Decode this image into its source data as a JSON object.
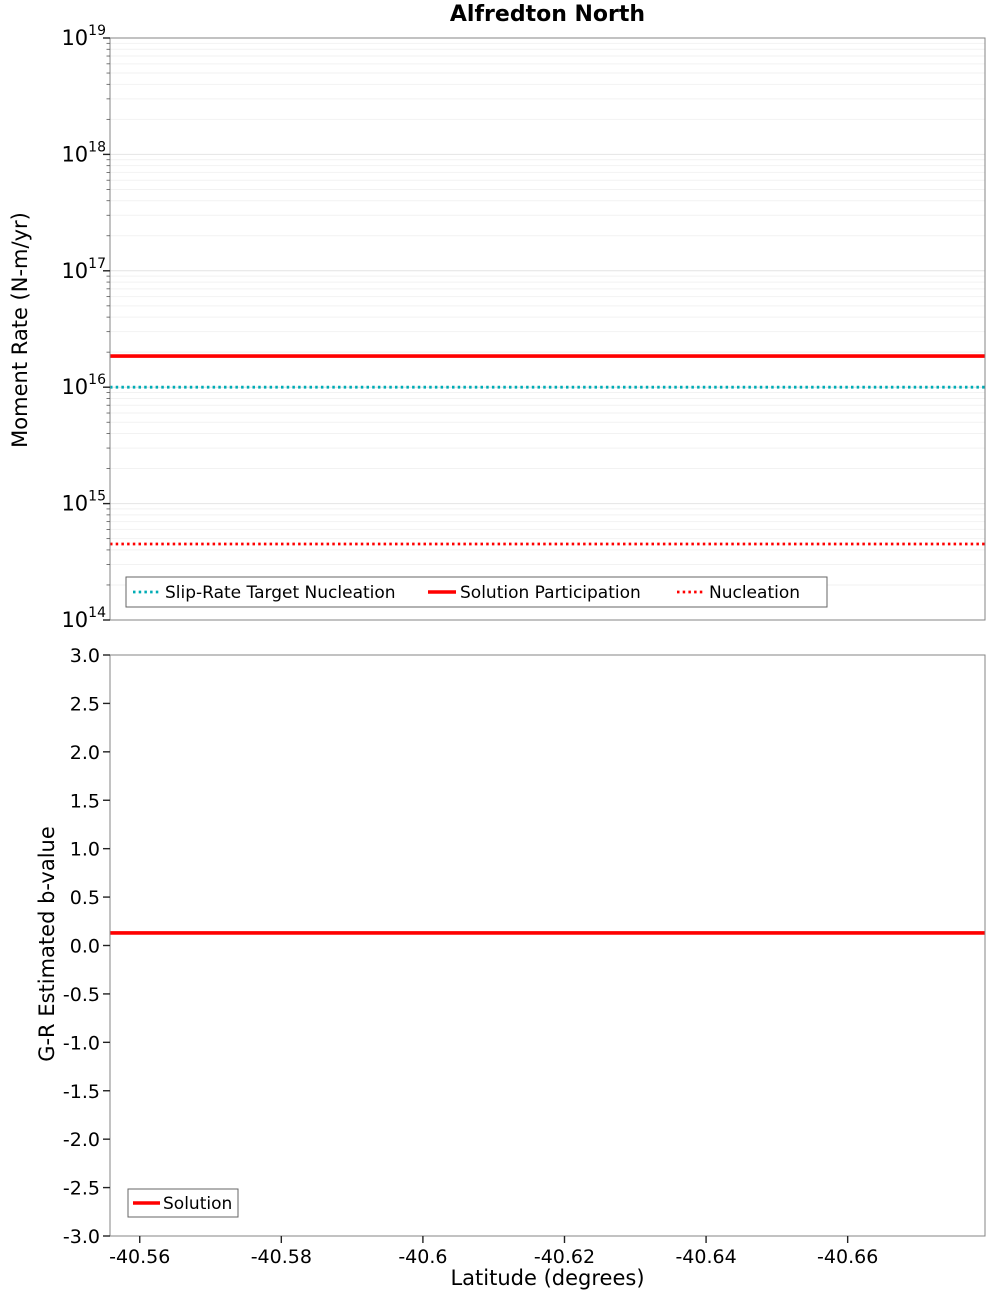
{
  "chart_data": [
    {
      "type": "line",
      "title": "Alfredton North",
      "ylabel": "Moment Rate (N-m/yr)",
      "yscale": "log",
      "ylim": [
        100000000000000.0,
        1e+19
      ],
      "ytick_exponents": [
        19,
        18,
        17,
        16,
        15,
        14
      ],
      "xlim": [
        -40.5558,
        -40.6794
      ],
      "grid": "horizontal-log-minor",
      "legend_position": "bottom-center-inside",
      "series": [
        {
          "name": "Slip-Rate Target Nucleation",
          "color": "#00ACB5",
          "line_style": "dotted",
          "line_width": 2.8,
          "y": 1e+16
        },
        {
          "name": "Solution Participation",
          "color": "#FF0000",
          "line_style": "solid",
          "line_width": 3.6,
          "y": 1.85e+16
        },
        {
          "name": "Nucleation",
          "color": "#FF0000",
          "line_style": "dotted",
          "line_width": 2.8,
          "y": 450000000000000.0
        }
      ]
    },
    {
      "type": "line",
      "title": "",
      "ylabel": "G-R Estimated b-value",
      "xlabel": "Latitude (degrees)",
      "ylim": [
        -3.0,
        3.0
      ],
      "ytick_labels": [
        "3.0",
        "2.5",
        "2.0",
        "1.5",
        "1.0",
        "0.5",
        "0.0",
        "-0.5",
        "-1.0",
        "-1.5",
        "-2.0",
        "-2.5",
        "-3.0"
      ],
      "ytick_values": [
        3.0,
        2.5,
        2.0,
        1.5,
        1.0,
        0.5,
        0.0,
        -0.5,
        -1.0,
        -1.5,
        -2.0,
        -2.5,
        -3.0
      ],
      "xlim": [
        -40.5558,
        -40.6794
      ],
      "xtick_labels": [
        "-40.56",
        "-40.58",
        "-40.6",
        "-40.62",
        "-40.64",
        "-40.66"
      ],
      "xtick_values": [
        -40.56,
        -40.58,
        -40.6,
        -40.62,
        -40.64,
        -40.66
      ],
      "grid": "off",
      "legend_position": "bottom-left-inside",
      "series": [
        {
          "name": "Solution",
          "color": "#FF0000",
          "line_style": "solid",
          "line_width": 3.6,
          "y": 0.13
        }
      ]
    }
  ]
}
